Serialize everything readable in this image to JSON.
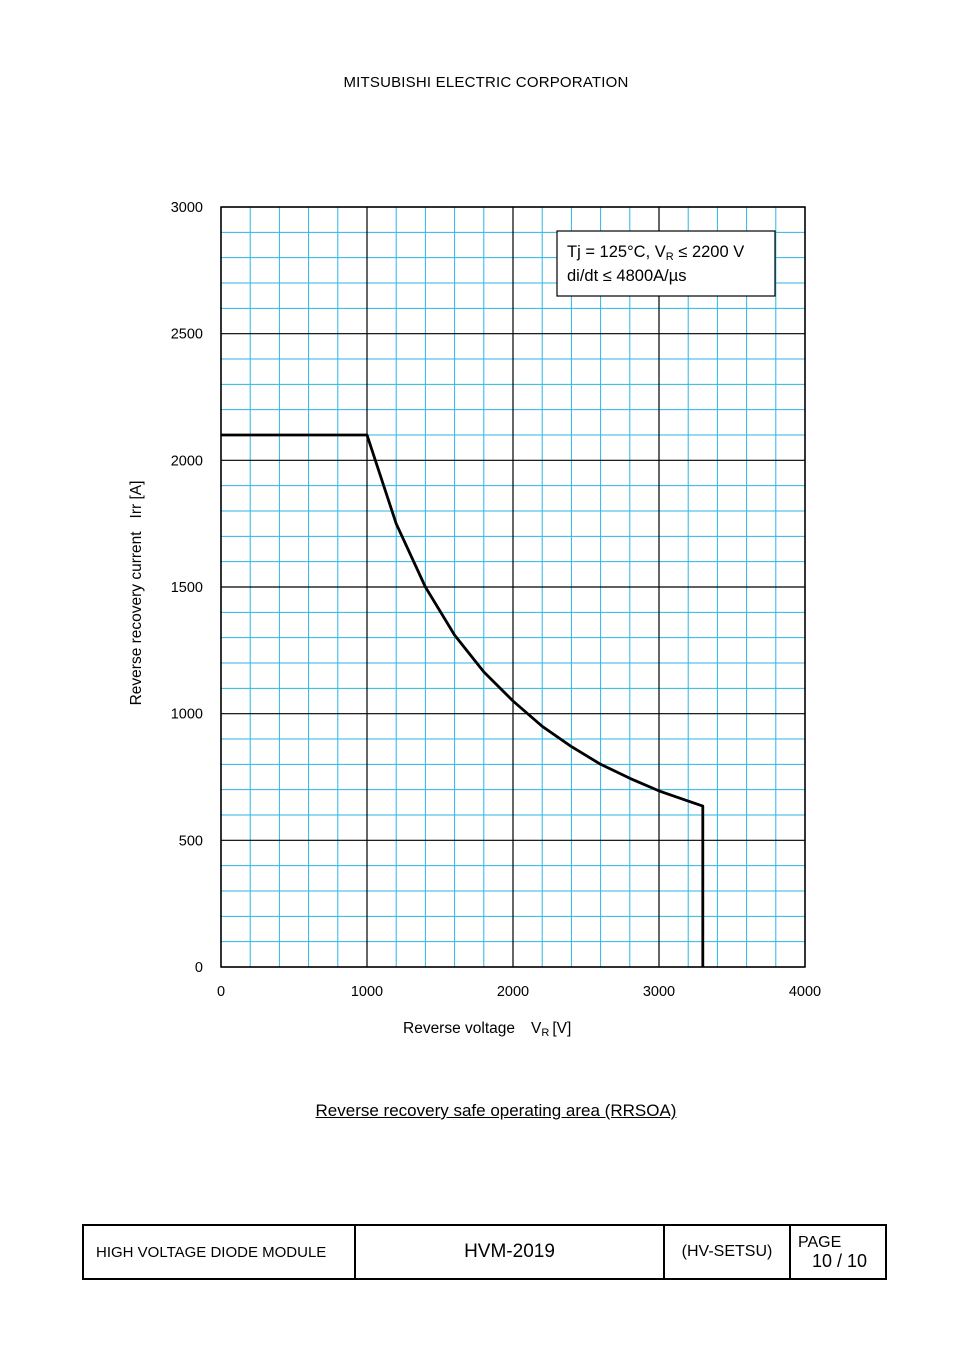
{
  "header": {
    "company": "MITSUBISHI ELECTRIC CORPORATION"
  },
  "chart_data": {
    "type": "line",
    "title": "",
    "xlabel": "Reverse voltage",
    "xlabel_sub": "R",
    "xlabel_unit": "[V]",
    "ylabel": "Reverse recovery current   Irr [A]",
    "xlim": [
      0,
      4000
    ],
    "ylim": [
      0,
      3000
    ],
    "x_ticks": [
      0,
      1000,
      2000,
      3000,
      4000
    ],
    "y_ticks": [
      0,
      500,
      1000,
      1500,
      2000,
      2500,
      3000
    ],
    "x_tick_labels": [
      "0",
      "1000",
      "2000",
      "3000",
      "4000"
    ],
    "y_tick_labels": [
      "0",
      "500",
      "1000",
      "1500",
      "2000",
      "2500",
      "3000"
    ],
    "grid": true,
    "grid_minor_x_step": 200,
    "grid_minor_y_step": 100,
    "series": [
      {
        "name": "RRSOA",
        "x": [
          0,
          1000,
          1200,
          1400,
          1600,
          1800,
          2000,
          2200,
          2400,
          2600,
          2800,
          3000,
          3200,
          3300,
          3300
        ],
        "y": [
          2100,
          2100,
          1750,
          1500,
          1310,
          1165,
          1050,
          950,
          870,
          800,
          745,
          695,
          655,
          635,
          0
        ]
      }
    ],
    "annotation": {
      "line1_prefix": "Tj = 125°C, V",
      "line1_sub": "R",
      "line1_suffix": " ≤ 2200 V",
      "line2": "di/dt ≤ 4800A/µs",
      "position": "top-right"
    }
  },
  "caption": "Reverse recovery safe operating area (RRSOA)",
  "footer": {
    "product": "HIGH VOLTAGE DIODE MODULE",
    "model": "HVM-2019",
    "doc": "(HV-SETSU)",
    "page_label": "PAGE",
    "page_value": "10 / 10"
  },
  "colors": {
    "minor_grid": "#29b6e6",
    "major_grid": "#000000",
    "curve": "#000000"
  }
}
